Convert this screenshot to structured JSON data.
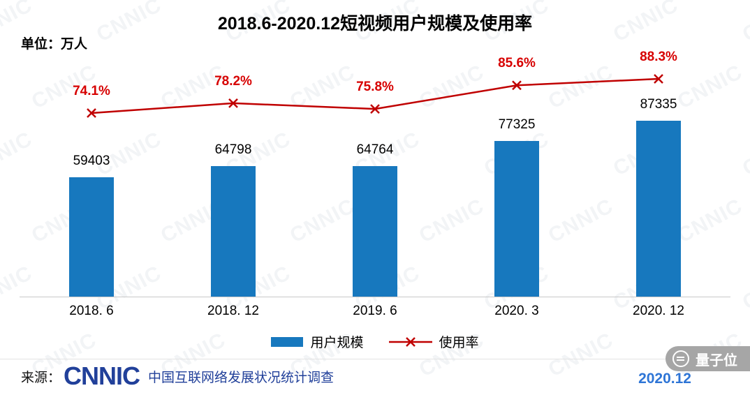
{
  "title": "2018.6-2020.12短视频用户规模及使用率",
  "unit_label": "单位：万人",
  "watermark": {
    "text": "CNNIC"
  },
  "legend": {
    "bars": "用户规模",
    "line": "使用率"
  },
  "footer": {
    "source_prefix": "来源：",
    "logo": "CNNIC",
    "source_text": "中国互联网络发展状况统计调查",
    "date": "2020.12",
    "badge": "量子位"
  },
  "colors": {
    "bar": "#1778be",
    "line": "#c00000",
    "pct_label": "#d70000",
    "footer_blue": "#21409a",
    "date_blue": "#2e75d6"
  },
  "chart_data": {
    "type": "bar",
    "title": "2018.6-2020.12短视频用户规模及使用率",
    "categories": [
      "2018. 6",
      "2018. 12",
      "2019. 6",
      "2020. 3",
      "2020. 12"
    ],
    "series": [
      {
        "name": "用户规模",
        "type": "bar",
        "unit": "万人",
        "values": [
          59403,
          64798,
          64764,
          77325,
          87335
        ]
      },
      {
        "name": "使用率",
        "type": "line",
        "unit": "%",
        "values": [
          74.1,
          78.2,
          75.8,
          85.6,
          88.3
        ],
        "labels": [
          "74.1%",
          "78.2%",
          "75.8%",
          "85.6%",
          "88.3%"
        ]
      }
    ],
    "ylabel": "万人",
    "y2label": "%",
    "grid": false,
    "legend_position": "bottom"
  }
}
